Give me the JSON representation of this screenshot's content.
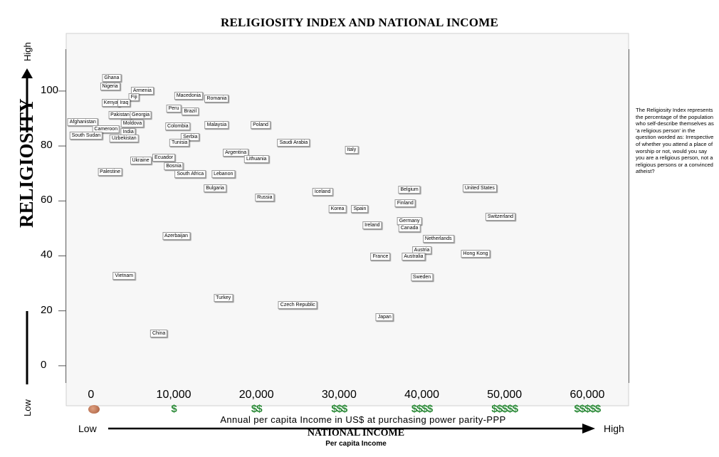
{
  "chart_data": {
    "type": "scatter",
    "title": "RELIGIOSITY INDEX AND NATIONAL INCOME",
    "ylabel": "RELIGIOSITY",
    "xlabel": "NATIONAL INCOME",
    "xlabel_sub": "Per capita Income",
    "x_axis_description": "Annual per capita Income in US$ at purchasing power parity-PPP",
    "y_low_label": "Low",
    "y_high_label": "High",
    "x_low_label": "Low",
    "x_high_label": "High",
    "xlim": [
      -3000,
      65000
    ],
    "ylim": [
      -6,
      115
    ],
    "x_ticks": [
      0,
      10000,
      20000,
      30000,
      40000,
      50000,
      60000
    ],
    "x_tick_labels": [
      "0",
      "10,000",
      "20,000",
      "30,000",
      "40,000",
      "50,000",
      "60,000"
    ],
    "money_symbols": [
      "$",
      "$$",
      "$$$",
      "$$$$",
      "$$$$$",
      "$$$$$"
    ],
    "y_ticks": [
      0,
      20,
      40,
      60,
      80,
      100
    ],
    "y_tick_labels": [
      "0",
      "20",
      "40",
      "60",
      "80",
      "100"
    ],
    "divider_x": 30000,
    "divider_y": 50,
    "bands": [
      {
        "from": 75,
        "to": 115,
        "color": "#0fa33b"
      },
      {
        "from": 50,
        "to": 75,
        "color": "#8fd14f"
      },
      {
        "from": 25,
        "to": 50,
        "color": "#ee1111"
      },
      {
        "from": -6,
        "to": 25,
        "color": "#c00000"
      }
    ],
    "grid": false,
    "note": "The Religiosity Index represents the percentage of the population who self-describe themselves as 'a religious person' in the question worded as: Irrespective of whether you attend a place of worship or not, would you say you are a religious person, not a religious persons or a convinced atheist?",
    "points": [
      {
        "name": "Ghana",
        "x": 2500,
        "y": 103
      },
      {
        "name": "Nigeria",
        "x": 2300,
        "y": 100
      },
      {
        "name": "Armenia",
        "x": 6200,
        "y": 98.5
      },
      {
        "name": "Fiji",
        "x": 5200,
        "y": 96
      },
      {
        "name": "Kenya",
        "x": 2400,
        "y": 94
      },
      {
        "name": "Iraq",
        "x": 4000,
        "y": 94
      },
      {
        "name": "Macedonia",
        "x": 11800,
        "y": 96.5
      },
      {
        "name": "Romania",
        "x": 15200,
        "y": 95.5
      },
      {
        "name": "Peru",
        "x": 10000,
        "y": 92
      },
      {
        "name": "Brazil",
        "x": 12000,
        "y": 91
      },
      {
        "name": "Pakistan",
        "x": 3500,
        "y": 89.5
      },
      {
        "name": "Georgia",
        "x": 6000,
        "y": 89.5
      },
      {
        "name": "Afghanistan",
        "x": -1000,
        "y": 87
      },
      {
        "name": "Moldova",
        "x": 5000,
        "y": 86.5
      },
      {
        "name": "Colombia",
        "x": 10500,
        "y": 85.5
      },
      {
        "name": "Malaysia",
        "x": 15200,
        "y": 86
      },
      {
        "name": "Poland",
        "x": 20500,
        "y": 86
      },
      {
        "name": "Cameroon",
        "x": 1800,
        "y": 84.5
      },
      {
        "name": "India",
        "x": 4500,
        "y": 83.5
      },
      {
        "name": "South Sudan",
        "x": -600,
        "y": 82
      },
      {
        "name": "Uzbekistan",
        "x": 4000,
        "y": 81
      },
      {
        "name": "Serbia",
        "x": 12000,
        "y": 81.5
      },
      {
        "name": "Tunisia",
        "x": 10700,
        "y": 79.5
      },
      {
        "name": "Saudi Arabia",
        "x": 24500,
        "y": 79.5
      },
      {
        "name": "Italy",
        "x": 31500,
        "y": 77
      },
      {
        "name": "Argentina",
        "x": 17500,
        "y": 76
      },
      {
        "name": "Ecuador",
        "x": 8800,
        "y": 74
      },
      {
        "name": "Ukraine",
        "x": 6000,
        "y": 73
      },
      {
        "name": "Lithuania",
        "x": 20000,
        "y": 73.5
      },
      {
        "name": "Bosnia",
        "x": 10000,
        "y": 71
      },
      {
        "name": "Palestine",
        "x": 2300,
        "y": 69
      },
      {
        "name": "South Africa",
        "x": 12000,
        "y": 68
      },
      {
        "name": "Lebanon",
        "x": 16000,
        "y": 68
      },
      {
        "name": "Bulgaria",
        "x": 15000,
        "y": 63
      },
      {
        "name": "Iceland",
        "x": 28000,
        "y": 61.5
      },
      {
        "name": "Russia",
        "x": 21000,
        "y": 59.5
      },
      {
        "name": "Belgium",
        "x": 38500,
        "y": 62.5
      },
      {
        "name": "United States",
        "x": 47000,
        "y": 63
      },
      {
        "name": "Finland",
        "x": 38000,
        "y": 57.5
      },
      {
        "name": "Korea",
        "x": 29800,
        "y": 55.5
      },
      {
        "name": "Spain",
        "x": 32500,
        "y": 55.5
      },
      {
        "name": "Switzerland",
        "x": 49500,
        "y": 52.5
      },
      {
        "name": "Germany",
        "x": 38500,
        "y": 51
      },
      {
        "name": "Ireland",
        "x": 34000,
        "y": 49.5
      },
      {
        "name": "Canada",
        "x": 38500,
        "y": 48.5
      },
      {
        "name": "Azerbaijan",
        "x": 10300,
        "y": 45.5
      },
      {
        "name": "Netherlands",
        "x": 42000,
        "y": 44.5
      },
      {
        "name": "Austria",
        "x": 40000,
        "y": 40.5
      },
      {
        "name": "Hong Kong",
        "x": 46500,
        "y": 39
      },
      {
        "name": "France",
        "x": 35000,
        "y": 38
      },
      {
        "name": "Australia",
        "x": 39000,
        "y": 38
      },
      {
        "name": "Vietnam",
        "x": 4000,
        "y": 31
      },
      {
        "name": "Sweden",
        "x": 40000,
        "y": 30.5
      },
      {
        "name": "Turkey",
        "x": 16000,
        "y": 23
      },
      {
        "name": "Czech Republic",
        "x": 25000,
        "y": 20.5
      },
      {
        "name": "Japan",
        "x": 35500,
        "y": 16
      },
      {
        "name": "China",
        "x": 8200,
        "y": 10
      }
    ]
  }
}
